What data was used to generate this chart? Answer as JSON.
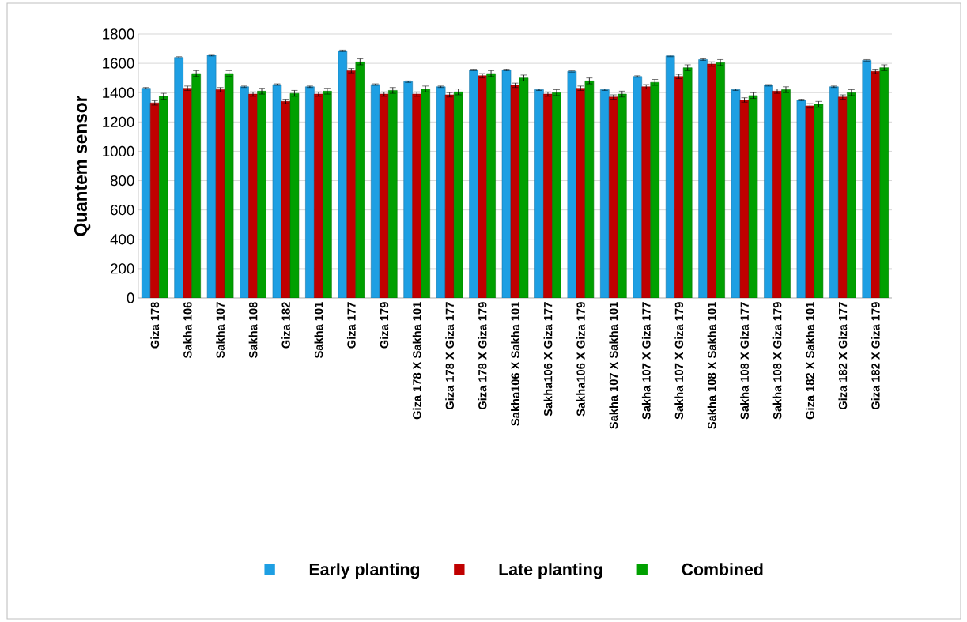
{
  "chart_data": {
    "type": "bar",
    "ylabel": "Quantem  sensor",
    "categories": [
      "Giza 178",
      "Sakha 106",
      "Sakha 107",
      "Sakha 108",
      "Giza 182",
      "Sakha 101",
      "Giza 177",
      "Giza 179",
      "Giza 178 X Sakha 101",
      "Giza 178 X Giza 177",
      "Giza 178 X Giza 179",
      "Sakha106 X Sakha  101",
      "Sakha106 X Giza 177",
      "Sakha106 X Giza 179",
      "Sakha 107 X Sakha 101",
      "Sakha 107 X Giza 177",
      "Sakha 107 X Giza 179",
      "Sakha 108 X Sakha 101",
      "Sakha 108 X Giza 177",
      "Sakha 108 X Giza 179",
      "Giza 182 X Sakha 101",
      "Giza 182 X Giza 177",
      "Giza 182 X Giza 179"
    ],
    "series": [
      {
        "name": "Early planting",
        "color": "#1e9fe3",
        "values": [
          1430,
          1640,
          1655,
          1440,
          1455,
          1440,
          1685,
          1455,
          1475,
          1440,
          1555,
          1555,
          1420,
          1545,
          1420,
          1510,
          1650,
          1625,
          1420,
          1450,
          1350,
          1440,
          1620
        ],
        "errors": [
          5,
          5,
          5,
          5,
          5,
          5,
          5,
          5,
          5,
          5,
          5,
          5,
          5,
          5,
          5,
          5,
          5,
          5,
          5,
          5,
          5,
          5,
          5
        ]
      },
      {
        "name": "Late planting",
        "color": "#c00000",
        "values": [
          1330,
          1430,
          1420,
          1390,
          1340,
          1390,
          1550,
          1390,
          1390,
          1385,
          1515,
          1450,
          1390,
          1430,
          1370,
          1440,
          1510,
          1595,
          1350,
          1410,
          1310,
          1370,
          1545
        ],
        "errors": [
          15,
          15,
          15,
          15,
          15,
          15,
          15,
          15,
          15,
          15,
          15,
          15,
          15,
          15,
          15,
          15,
          15,
          15,
          15,
          15,
          15,
          15,
          15
        ]
      },
      {
        "name": "Combined",
        "color": "#00a000",
        "values": [
          1375,
          1530,
          1530,
          1410,
          1395,
          1410,
          1610,
          1415,
          1425,
          1405,
          1530,
          1500,
          1400,
          1480,
          1390,
          1470,
          1570,
          1605,
          1380,
          1420,
          1320,
          1400,
          1570
        ],
        "errors": [
          20,
          20,
          20,
          20,
          20,
          20,
          20,
          20,
          20,
          20,
          20,
          20,
          20,
          20,
          20,
          20,
          20,
          20,
          20,
          20,
          20,
          20,
          20
        ]
      }
    ],
    "ylim": [
      0,
      1800
    ],
    "yticks": [
      0,
      200,
      400,
      600,
      800,
      1000,
      1200,
      1400,
      1600,
      1800
    ],
    "grid": "y",
    "legend": "bottom"
  }
}
